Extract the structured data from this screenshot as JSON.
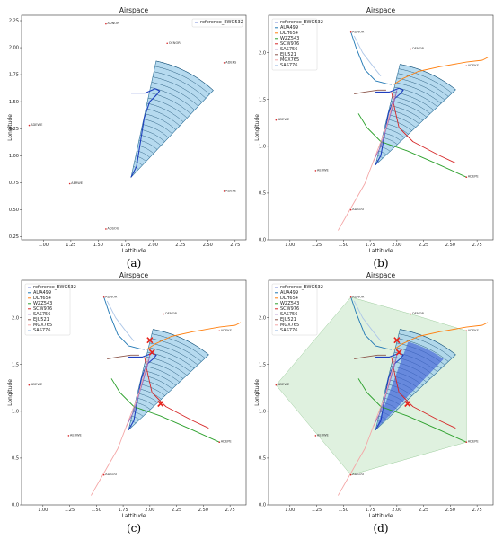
{
  "figure": {
    "panels": [
      {
        "caption": "(a)",
        "title": "Airspace",
        "xlabel": "Lattitude",
        "ylabel": "Longitude",
        "xlim": [
          0.8,
          2.85
        ],
        "ylim": [
          0.22,
          2.3
        ],
        "xticks": [
          "1.00",
          "1.25",
          "1.50",
          "1.75",
          "2.00",
          "2.25",
          "2.50",
          "2.75"
        ],
        "yticks": [
          "0.25",
          "0.50",
          "0.75",
          "1.00",
          "1.25",
          "1.50",
          "1.75",
          "2.00",
          "2.25"
        ],
        "legend": [
          "reference_EWG532"
        ],
        "conflict_markers": [],
        "green_hull": false,
        "dark_sector": false
      },
      {
        "caption": "(b)",
        "title": "Airspace",
        "xlabel": "Lattitude",
        "ylabel": "Longitude",
        "xlim": [
          0.8,
          2.9
        ],
        "ylim": [
          0.0,
          2.4
        ],
        "xticks": [
          "1.00",
          "1.25",
          "1.50",
          "1.75",
          "2.00",
          "2.25",
          "2.50",
          "2.75"
        ],
        "yticks": [
          "0.0",
          "0.5",
          "1.0",
          "1.5",
          "2.0"
        ],
        "legend": [
          "reference_EWG532",
          "AUA499",
          "DLH654",
          "WZZ543",
          "SCW976",
          "SAS756",
          "EJU521",
          "MGX765",
          "SAS776"
        ],
        "conflict_markers": [],
        "green_hull": false,
        "dark_sector": false
      },
      {
        "caption": "(c)",
        "title": "Airspace",
        "xlabel": "Lattitude",
        "ylabel": "Longitude",
        "xlim": [
          0.8,
          2.9
        ],
        "ylim": [
          0.0,
          2.4
        ],
        "xticks": [
          "1.00",
          "1.25",
          "1.50",
          "1.75",
          "2.00",
          "2.25",
          "2.50",
          "2.75"
        ],
        "yticks": [
          "0.0",
          "0.5",
          "1.0",
          "1.5",
          "2.0"
        ],
        "legend": [
          "reference_EWG532",
          "AUA499",
          "DLH654",
          "WZZ543",
          "SCW976",
          "SAS756",
          "EJU521",
          "MGX765",
          "SAS776"
        ],
        "conflict_markers": [
          [
            2.0,
            1.76
          ],
          [
            2.02,
            1.63
          ],
          [
            2.1,
            1.08
          ]
        ],
        "green_hull": false,
        "dark_sector": false
      },
      {
        "caption": "(d)",
        "title": "Airspace",
        "xlabel": "Lattitude",
        "ylabel": "Longitude",
        "xlim": [
          0.8,
          2.9
        ],
        "ylim": [
          0.0,
          2.4
        ],
        "xticks": [
          "1.00",
          "1.25",
          "1.50",
          "1.75",
          "2.00",
          "2.25",
          "2.50",
          "2.75"
        ],
        "yticks": [
          "0.0",
          "0.5",
          "1.0",
          "1.5",
          "2.0"
        ],
        "legend": [
          "reference_EWG532",
          "AUA499",
          "DLH654",
          "WZZ543",
          "SCW976",
          "SAS756",
          "EJU521",
          "MGX765",
          "SAS776"
        ],
        "conflict_markers": [
          [
            2.0,
            1.76
          ],
          [
            2.02,
            1.63
          ],
          [
            2.1,
            1.08
          ]
        ],
        "green_hull": true,
        "dark_sector": true
      }
    ]
  },
  "chart_data": {
    "type": "line",
    "waypoints": [
      {
        "name": "ADNOR",
        "x": 1.57,
        "y": 2.22
      },
      {
        "name": "OENOR",
        "x": 2.13,
        "y": 2.04
      },
      {
        "name": "ADEKS",
        "x": 2.65,
        "y": 1.86
      },
      {
        "name": "ADEWE",
        "x": 0.87,
        "y": 1.28
      },
      {
        "name": "AERWE",
        "x": 1.24,
        "y": 0.74
      },
      {
        "name": "ADEPE",
        "x": 2.65,
        "y": 0.67
      },
      {
        "name": "ADSOU",
        "x": 1.57,
        "y": 0.32
      }
    ],
    "sector": {
      "apex": [
        1.8,
        0.8
      ],
      "radius": 1.1,
      "start_deg": 47,
      "end_deg": 78,
      "rings": 22
    },
    "series": [
      {
        "name": "reference_EWG532",
        "color": "#1f3fbf",
        "points": [
          [
            1.8,
            0.8
          ],
          [
            1.85,
            0.9
          ],
          [
            1.92,
            1.35
          ],
          [
            1.97,
            1.5
          ],
          [
            2.03,
            1.56
          ],
          [
            2.06,
            1.6
          ],
          [
            2.02,
            1.62
          ],
          [
            1.93,
            1.58
          ],
          [
            1.8,
            1.58
          ]
        ]
      },
      {
        "name": "AUA499",
        "color": "#1f77b4",
        "points": [
          [
            1.57,
            2.22
          ],
          [
            1.62,
            2.05
          ],
          [
            1.7,
            1.82
          ],
          [
            1.8,
            1.7
          ],
          [
            1.9,
            1.67
          ],
          [
            1.95,
            1.66
          ]
        ]
      },
      {
        "name": "DLH654",
        "color": "#ff7f0e",
        "points": [
          [
            1.97,
            1.66
          ],
          [
            2.05,
            1.72
          ],
          [
            2.2,
            1.8
          ],
          [
            2.4,
            1.85
          ],
          [
            2.65,
            1.9
          ],
          [
            2.8,
            1.92
          ],
          [
            2.85,
            1.95
          ]
        ]
      },
      {
        "name": "WZZ543",
        "color": "#2ca02c",
        "points": [
          [
            1.64,
            1.35
          ],
          [
            1.72,
            1.2
          ],
          [
            1.85,
            1.05
          ],
          [
            2.1,
            0.95
          ],
          [
            2.4,
            0.8
          ],
          [
            2.65,
            0.67
          ]
        ]
      },
      {
        "name": "SCW976",
        "color": "#d62728",
        "points": [
          [
            1.95,
            1.58
          ],
          [
            1.98,
            1.4
          ],
          [
            2.02,
            1.2
          ],
          [
            2.15,
            1.05
          ],
          [
            2.4,
            0.9
          ],
          [
            2.55,
            0.82
          ]
        ]
      },
      {
        "name": "SAS756",
        "color": "#9467bd",
        "points": [
          [
            1.78,
            0.84
          ],
          [
            1.85,
            1.0
          ],
          [
            1.93,
            1.3
          ],
          [
            1.98,
            1.5
          ],
          [
            2.0,
            1.6
          ]
        ]
      },
      {
        "name": "EJU521",
        "color": "#8c564b",
        "points": [
          [
            1.6,
            1.56
          ],
          [
            1.7,
            1.58
          ],
          [
            1.82,
            1.6
          ],
          [
            1.9,
            1.6
          ]
        ]
      },
      {
        "name": "MGX765",
        "color": "#f4a6a6",
        "points": [
          [
            1.45,
            0.1
          ],
          [
            1.55,
            0.3
          ],
          [
            1.7,
            0.6
          ],
          [
            1.8,
            0.9
          ],
          [
            1.9,
            1.2
          ],
          [
            1.98,
            1.55
          ]
        ]
      },
      {
        "name": "SAS776",
        "color": "#aec7e8",
        "points": [
          [
            1.6,
            2.18
          ],
          [
            1.68,
            2.0
          ],
          [
            1.78,
            1.85
          ],
          [
            1.85,
            1.75
          ]
        ]
      }
    ],
    "hull": [
      [
        0.87,
        1.28
      ],
      [
        1.57,
        2.22
      ],
      [
        2.13,
        2.04
      ],
      [
        2.65,
        1.86
      ],
      [
        2.65,
        0.67
      ],
      [
        1.57,
        0.32
      ]
    ]
  }
}
